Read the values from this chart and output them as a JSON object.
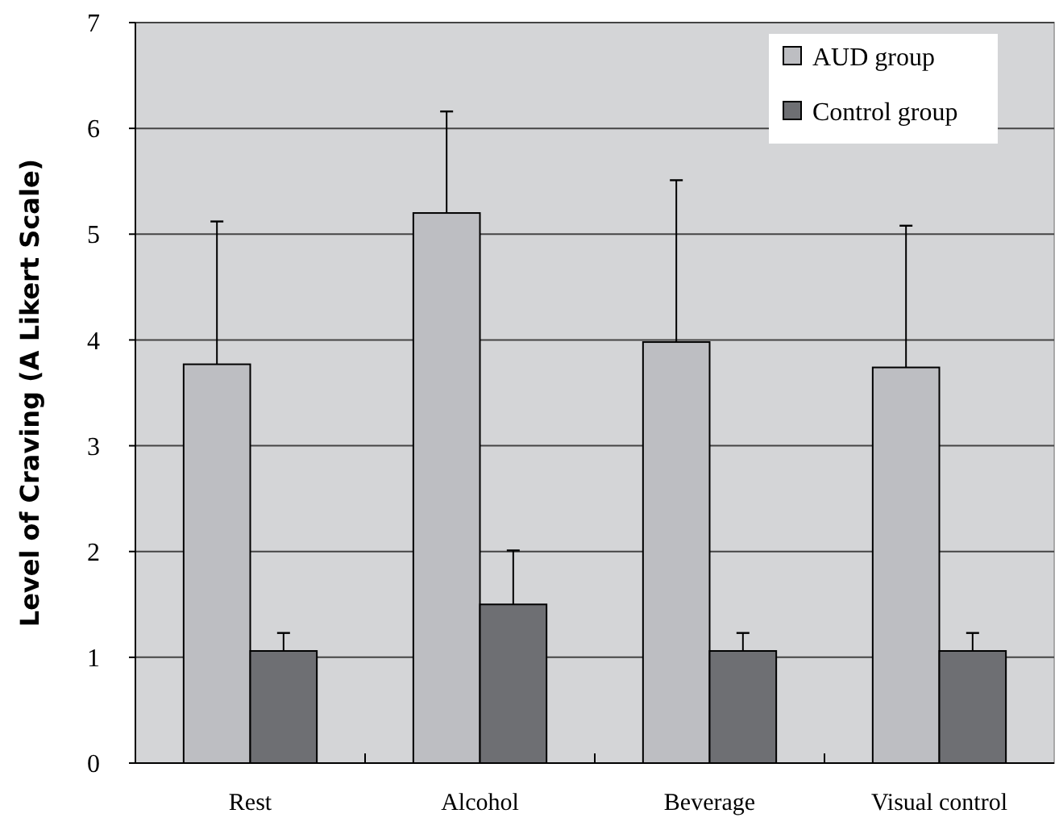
{
  "chart_data": {
    "type": "bar",
    "ylabel": "Level of Craving (A Likert Scale)",
    "categories": [
      "Rest",
      "Alcohol",
      "Beverage",
      "Visual control"
    ],
    "series": [
      {
        "name": "AUD group",
        "color": "#bdbec2",
        "values": [
          3.77,
          5.2,
          3.98,
          3.74
        ],
        "errors": [
          [
            3.77,
            5.12
          ],
          [
            5.2,
            6.16
          ],
          [
            3.98,
            5.51
          ],
          [
            3.74,
            5.08
          ]
        ]
      },
      {
        "name": "Control group",
        "color": "#6e6f73",
        "values": [
          1.06,
          1.5,
          1.06,
          1.06
        ],
        "errors": [
          [
            1.06,
            1.23
          ],
          [
            1.5,
            2.01
          ],
          [
            1.06,
            1.23
          ],
          [
            1.06,
            1.23
          ]
        ]
      }
    ],
    "ylim": [
      0,
      7
    ],
    "yticks": [
      0,
      1,
      2,
      3,
      4,
      5,
      6,
      7
    ],
    "grid": "y",
    "legend": "top right"
  }
}
